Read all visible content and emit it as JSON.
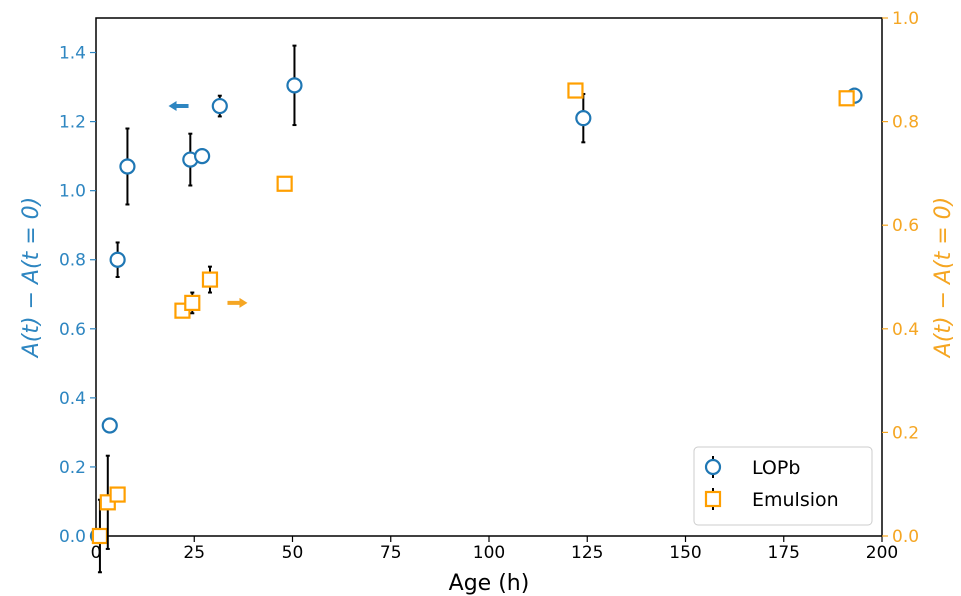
{
  "chart_data": {
    "type": "scatter",
    "xlabel": "Age (h)",
    "ylabel_left": "A(t) − A(t = 0)",
    "ylabel_right": "A(t) − A(t = 0)",
    "xlim": [
      0,
      200
    ],
    "ylim_left": [
      0,
      1.5
    ],
    "ylim_right": [
      0,
      1.0
    ],
    "x_ticks": [
      0,
      25,
      50,
      75,
      100,
      125,
      150,
      175,
      200
    ],
    "x_tick_labels": [
      "0",
      "25",
      "50",
      "75",
      "100",
      "125",
      "150",
      "175",
      "200"
    ],
    "y_left_ticks": [
      0.0,
      0.2,
      0.4,
      0.6,
      0.8,
      1.0,
      1.2,
      1.4
    ],
    "y_left_tick_labels": [
      "0.0",
      "0.2",
      "0.4",
      "0.6",
      "0.8",
      "1.0",
      "1.2",
      "1.4"
    ],
    "y_right_ticks": [
      0.0,
      0.2,
      0.4,
      0.6,
      0.8,
      1.0
    ],
    "y_right_tick_labels": [
      "0.0",
      "0.2",
      "0.4",
      "0.6",
      "0.8",
      "1.0"
    ],
    "grid": false,
    "legend_position": "bottom-right",
    "colors": {
      "left_axis": "#2e86c1",
      "right_axis": "#f5a623",
      "errorbar": "#000000",
      "lopb_marker": "#1f77b4",
      "emulsion_marker": "#ff9f00"
    },
    "series": [
      {
        "name": "LOPb",
        "axis": "left",
        "marker": "circle",
        "points": [
          {
            "x": 0.5,
            "y": 0.0,
            "err": 0.0
          },
          {
            "x": 3.5,
            "y": 0.32,
            "err": 0.0
          },
          {
            "x": 5.5,
            "y": 0.8,
            "err": 0.05
          },
          {
            "x": 8,
            "y": 1.07,
            "err": 0.11
          },
          {
            "x": 24,
            "y": 1.09,
            "err": 0.075
          },
          {
            "x": 27,
            "y": 1.1,
            "err": 0.0
          },
          {
            "x": 31.5,
            "y": 1.245,
            "err": 0.03
          },
          {
            "x": 50.5,
            "y": 1.305,
            "err": 0.115
          },
          {
            "x": 124,
            "y": 1.21,
            "err": 0.07
          },
          {
            "x": 193,
            "y": 1.275,
            "err": 0.02
          }
        ]
      },
      {
        "name": "Emulsion",
        "axis": "right",
        "marker": "square",
        "points": [
          {
            "x": 1,
            "y": 0.0,
            "err": 0.07
          },
          {
            "x": 3,
            "y": 0.065,
            "err": 0.09
          },
          {
            "x": 5.5,
            "y": 0.08,
            "err": 0.0
          },
          {
            "x": 22,
            "y": 0.435,
            "err": 0.0
          },
          {
            "x": 24.5,
            "y": 0.45,
            "err": 0.02
          },
          {
            "x": 29,
            "y": 0.495,
            "err": 0.025
          },
          {
            "x": 48,
            "y": 0.68,
            "err": 0.0
          },
          {
            "x": 122,
            "y": 0.86,
            "err": 0.0
          },
          {
            "x": 191,
            "y": 0.845,
            "err": 0.0
          }
        ]
      }
    ],
    "annotations": [
      {
        "type": "arrow",
        "direction": "left",
        "series": "LOPb",
        "x": 21,
        "y": 1.245
      },
      {
        "type": "arrow",
        "direction": "right",
        "series": "Emulsion",
        "x": 36,
        "y": 0.45
      }
    ]
  }
}
